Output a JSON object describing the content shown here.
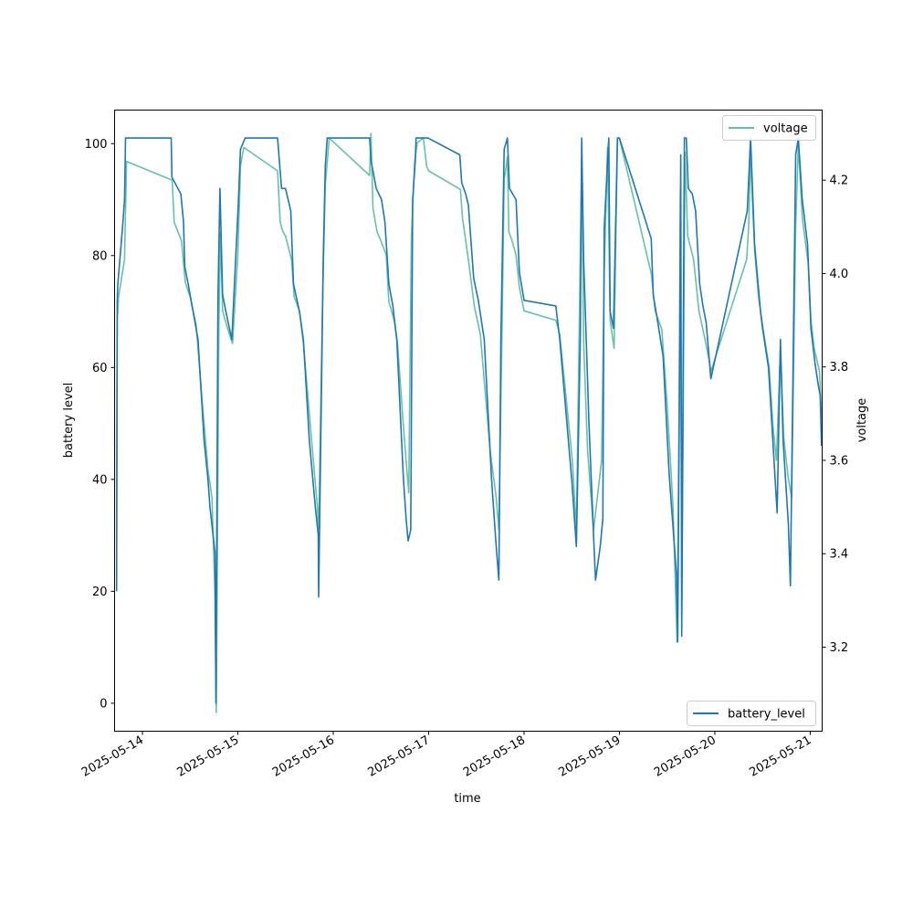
{
  "chart_data": {
    "type": "line",
    "xlabel": "time",
    "ylabel_left": "battery level",
    "ylabel_right": "voltage",
    "x_range": [
      "2025-05-13T17:00",
      "2025-05-21T03:00"
    ],
    "x_ticks": [
      "2025-05-14",
      "2025-05-15",
      "2025-05-16",
      "2025-05-17",
      "2025-05-18",
      "2025-05-19",
      "2025-05-20",
      "2025-05-21"
    ],
    "y_left_range": [
      -5,
      106
    ],
    "y_left_ticks": [
      0,
      20,
      40,
      60,
      80,
      100
    ],
    "y_right_range": [
      3.02,
      4.35
    ],
    "y_right_ticks": [
      "3.2",
      "3.4",
      "3.6",
      "3.8",
      "4.0",
      "4.2"
    ],
    "grid": false,
    "colors": {
      "battery_level": "#1f77b4",
      "voltage": "#66c2a5"
    },
    "series": [
      {
        "name": "battery_level",
        "axis": "left",
        "legend_position": "bottom-right",
        "points": [
          [
            "2025-05-13T17:30",
            20
          ],
          [
            "2025-05-13T17:40",
            72
          ],
          [
            "2025-05-13T17:50",
            75
          ],
          [
            "2025-05-13T19:00",
            85
          ],
          [
            "2025-05-13T19:30",
            90
          ],
          [
            "2025-05-13T19:45",
            101
          ],
          [
            "2025-05-14T07:15",
            101
          ],
          [
            "2025-05-14T07:25",
            94
          ],
          [
            "2025-05-14T09:40",
            91
          ],
          [
            "2025-05-14T10:20",
            86
          ],
          [
            "2025-05-14T10:40",
            78
          ],
          [
            "2025-05-14T11:30",
            75
          ],
          [
            "2025-05-14T13:00",
            69
          ],
          [
            "2025-05-14T14:00",
            65
          ],
          [
            "2025-05-14T15:30",
            47
          ],
          [
            "2025-05-14T16:30",
            40
          ],
          [
            "2025-05-14T17:00",
            35
          ],
          [
            "2025-05-14T18:15",
            27
          ],
          [
            "2025-05-14T18:30",
            0
          ],
          [
            "2025-05-14T19:00",
            72
          ],
          [
            "2025-05-14T19:30",
            92
          ],
          [
            "2025-05-14T20:10",
            73
          ],
          [
            "2025-05-14T21:00",
            70
          ],
          [
            "2025-05-14T22:30",
            65
          ],
          [
            "2025-05-15T00:10",
            90
          ],
          [
            "2025-05-15T00:40",
            99
          ],
          [
            "2025-05-15T01:50",
            101
          ],
          [
            "2025-05-15T10:00",
            101
          ],
          [
            "2025-05-15T11:00",
            92
          ],
          [
            "2025-05-15T12:00",
            92
          ],
          [
            "2025-05-15T13:20",
            88
          ],
          [
            "2025-05-15T14:00",
            75
          ],
          [
            "2025-05-15T15:30",
            70
          ],
          [
            "2025-05-15T16:30",
            65
          ],
          [
            "2025-05-15T18:00",
            47
          ],
          [
            "2025-05-15T19:30",
            35
          ],
          [
            "2025-05-15T20:15",
            30
          ],
          [
            "2025-05-15T20:20",
            19
          ],
          [
            "2025-05-15T21:30",
            80
          ],
          [
            "2025-05-15T22:00",
            96
          ],
          [
            "2025-05-15T22:30",
            101
          ],
          [
            "2025-05-16T09:10",
            101
          ],
          [
            "2025-05-16T09:30",
            97
          ],
          [
            "2025-05-16T10:50",
            92
          ],
          [
            "2025-05-16T12:10",
            90
          ],
          [
            "2025-05-16T13:00",
            86
          ],
          [
            "2025-05-16T14:00",
            75
          ],
          [
            "2025-05-16T15:00",
            71
          ],
          [
            "2025-05-16T16:00",
            65
          ],
          [
            "2025-05-16T17:40",
            40
          ],
          [
            "2025-05-16T18:20",
            33
          ],
          [
            "2025-05-16T18:50",
            29
          ],
          [
            "2025-05-16T19:30",
            31
          ],
          [
            "2025-05-16T20:00",
            90
          ],
          [
            "2025-05-16T20:40",
            97
          ],
          [
            "2025-05-16T20:50",
            101
          ],
          [
            "2025-05-16T23:50",
            101
          ],
          [
            "2025-05-17T07:50",
            98
          ],
          [
            "2025-05-17T08:20",
            93
          ],
          [
            "2025-05-17T09:20",
            91
          ],
          [
            "2025-05-17T10:00",
            89
          ],
          [
            "2025-05-17T11:20",
            76
          ],
          [
            "2025-05-17T12:30",
            72
          ],
          [
            "2025-05-17T14:00",
            65
          ],
          [
            "2025-05-17T15:50",
            40
          ],
          [
            "2025-05-17T17:00",
            28
          ],
          [
            "2025-05-17T17:40",
            22
          ],
          [
            "2025-05-17T18:10",
            65
          ],
          [
            "2025-05-17T19:00",
            99
          ],
          [
            "2025-05-17T19:50",
            101
          ],
          [
            "2025-05-17T20:20",
            92
          ],
          [
            "2025-05-17T22:00",
            90
          ],
          [
            "2025-05-17T22:50",
            77
          ],
          [
            "2025-05-18T00:00",
            72
          ],
          [
            "2025-05-18T08:00",
            71
          ],
          [
            "2025-05-18T09:00",
            65
          ],
          [
            "2025-05-18T12:00",
            40
          ],
          [
            "2025-05-18T13:10",
            28
          ],
          [
            "2025-05-18T14:10",
            65
          ],
          [
            "2025-05-18T14:30",
            101
          ],
          [
            "2025-05-18T15:00",
            79
          ],
          [
            "2025-05-18T16:20",
            50
          ],
          [
            "2025-05-18T17:40",
            27
          ],
          [
            "2025-05-18T18:00",
            22
          ],
          [
            "2025-05-18T19:10",
            28
          ],
          [
            "2025-05-18T19:50",
            33
          ],
          [
            "2025-05-18T20:10",
            85
          ],
          [
            "2025-05-18T21:20",
            101
          ],
          [
            "2025-05-18T21:40",
            70
          ],
          [
            "2025-05-18T22:30",
            67
          ],
          [
            "2025-05-18T23:30",
            101
          ],
          [
            "2025-05-19T00:00",
            101
          ],
          [
            "2025-05-19T08:00",
            83
          ],
          [
            "2025-05-19T08:30",
            73
          ],
          [
            "2025-05-19T09:40",
            68
          ],
          [
            "2025-05-19T11:00",
            62
          ],
          [
            "2025-05-19T12:30",
            41
          ],
          [
            "2025-05-19T14:20",
            23
          ],
          [
            "2025-05-19T14:40",
            11
          ],
          [
            "2025-05-19T15:10",
            64
          ],
          [
            "2025-05-19T15:25",
            98
          ],
          [
            "2025-05-19T15:40",
            12
          ],
          [
            "2025-05-19T16:20",
            101
          ],
          [
            "2025-05-19T16:50",
            101
          ],
          [
            "2025-05-19T17:20",
            92
          ],
          [
            "2025-05-19T18:20",
            91
          ],
          [
            "2025-05-19T19:10",
            88
          ],
          [
            "2025-05-19T20:10",
            75
          ],
          [
            "2025-05-19T21:00",
            71
          ],
          [
            "2025-05-19T21:50",
            68
          ],
          [
            "2025-05-19T23:00",
            58
          ],
          [
            "2025-05-20T08:10",
            88
          ],
          [
            "2025-05-20T09:00",
            101
          ],
          [
            "2025-05-20T10:00",
            82
          ],
          [
            "2025-05-20T11:30",
            70
          ],
          [
            "2025-05-20T12:00",
            67
          ],
          [
            "2025-05-20T13:30",
            60
          ],
          [
            "2025-05-20T14:30",
            48
          ],
          [
            "2025-05-20T15:40",
            34
          ],
          [
            "2025-05-20T16:30",
            65
          ],
          [
            "2025-05-20T17:10",
            47
          ],
          [
            "2025-05-20T18:30",
            32
          ],
          [
            "2025-05-20T19:00",
            21
          ],
          [
            "2025-05-20T20:20",
            98
          ],
          [
            "2025-05-20T21:00",
            101
          ],
          [
            "2025-05-20T22:00",
            90
          ],
          [
            "2025-05-20T23:20",
            82
          ],
          [
            "2025-05-21T00:10",
            67
          ],
          [
            "2025-05-21T01:10",
            61
          ],
          [
            "2025-05-21T02:00",
            57
          ],
          [
            "2025-05-21T02:30",
            55
          ],
          [
            "2025-05-21T02:50",
            46
          ]
        ]
      },
      {
        "name": "voltage",
        "axis": "right",
        "legend_position": "top-right",
        "points": [
          [
            "2025-05-13T17:30",
            3.43
          ],
          [
            "2025-05-13T17:40",
            3.9
          ],
          [
            "2025-05-13T18:00",
            3.95
          ],
          [
            "2025-05-13T19:30",
            4.03
          ],
          [
            "2025-05-13T20:00",
            4.24
          ],
          [
            "2025-05-14T07:30",
            4.2
          ],
          [
            "2025-05-14T08:00",
            4.11
          ],
          [
            "2025-05-14T09:50",
            4.07
          ],
          [
            "2025-05-14T10:50",
            3.98
          ],
          [
            "2025-05-14T12:00",
            3.95
          ],
          [
            "2025-05-14T13:30",
            3.89
          ],
          [
            "2025-05-14T15:00",
            3.73
          ],
          [
            "2025-05-14T16:30",
            3.58
          ],
          [
            "2025-05-14T17:30",
            3.52
          ],
          [
            "2025-05-14T18:15",
            3.32
          ],
          [
            "2025-05-14T18:35",
            3.06
          ],
          [
            "2025-05-14T19:15",
            3.9
          ],
          [
            "2025-05-14T19:40",
            4.09
          ],
          [
            "2025-05-14T20:10",
            3.92
          ],
          [
            "2025-05-14T21:30",
            3.88
          ],
          [
            "2025-05-14T22:40",
            3.85
          ],
          [
            "2025-05-15T00:00",
            4.04
          ],
          [
            "2025-05-15T00:40",
            4.23
          ],
          [
            "2025-05-15T01:30",
            4.27
          ],
          [
            "2025-05-15T10:00",
            4.22
          ],
          [
            "2025-05-15T10:40",
            4.11
          ],
          [
            "2025-05-15T11:20",
            4.09
          ],
          [
            "2025-05-15T12:00",
            4.08
          ],
          [
            "2025-05-15T13:30",
            4.03
          ],
          [
            "2025-05-15T14:10",
            3.95
          ],
          [
            "2025-05-15T15:30",
            3.92
          ],
          [
            "2025-05-15T16:30",
            3.85
          ],
          [
            "2025-05-15T18:30",
            3.65
          ],
          [
            "2025-05-15T20:00",
            3.5
          ],
          [
            "2025-05-15T20:20",
            3.45
          ],
          [
            "2025-05-15T21:20",
            3.95
          ],
          [
            "2025-05-15T22:00",
            4.19
          ],
          [
            "2025-05-15T23:00",
            4.29
          ],
          [
            "2025-05-16T09:10",
            4.21
          ],
          [
            "2025-05-16T09:30",
            4.3
          ],
          [
            "2025-05-16T10:00",
            4.14
          ],
          [
            "2025-05-16T11:00",
            4.09
          ],
          [
            "2025-05-16T12:00",
            4.07
          ],
          [
            "2025-05-16T13:20",
            4.04
          ],
          [
            "2025-05-16T14:00",
            3.94
          ],
          [
            "2025-05-16T15:20",
            3.9
          ],
          [
            "2025-05-16T16:10",
            3.85
          ],
          [
            "2025-05-16T17:30",
            3.69
          ],
          [
            "2025-05-16T18:20",
            3.6
          ],
          [
            "2025-05-16T19:00",
            3.53
          ],
          [
            "2025-05-16T19:40",
            4.08
          ],
          [
            "2025-05-16T20:30",
            4.24
          ],
          [
            "2025-05-16T21:10",
            4.28
          ],
          [
            "2025-05-16T22:40",
            4.29
          ],
          [
            "2025-05-16T23:30",
            4.23
          ],
          [
            "2025-05-17T00:00",
            4.22
          ],
          [
            "2025-05-17T08:00",
            4.18
          ],
          [
            "2025-05-17T08:30",
            4.12
          ],
          [
            "2025-05-17T10:00",
            4.03
          ],
          [
            "2025-05-17T11:30",
            3.93
          ],
          [
            "2025-05-17T13:00",
            3.87
          ],
          [
            "2025-05-17T15:30",
            3.62
          ],
          [
            "2025-05-17T17:00",
            3.52
          ],
          [
            "2025-05-17T17:40",
            3.45
          ],
          [
            "2025-05-17T18:30",
            3.9
          ],
          [
            "2025-05-17T19:00",
            4.2
          ],
          [
            "2025-05-17T19:50",
            4.25
          ],
          [
            "2025-05-17T20:10",
            4.09
          ],
          [
            "2025-05-17T21:00",
            4.07
          ],
          [
            "2025-05-17T22:00",
            4.04
          ],
          [
            "2025-05-17T22:50",
            3.97
          ],
          [
            "2025-05-18T00:00",
            3.92
          ],
          [
            "2025-05-18T08:00",
            3.9
          ],
          [
            "2025-05-18T09:00",
            3.87
          ],
          [
            "2025-05-18T12:10",
            3.6
          ],
          [
            "2025-05-18T13:10",
            3.45
          ],
          [
            "2025-05-18T14:30",
            4.25
          ],
          [
            "2025-05-18T15:00",
            3.85
          ],
          [
            "2025-05-18T16:00",
            3.62
          ],
          [
            "2025-05-18T17:30",
            3.45
          ],
          [
            "2025-05-18T19:30",
            3.6
          ],
          [
            "2025-05-18T20:10",
            4.0
          ],
          [
            "2025-05-18T21:00",
            4.27
          ],
          [
            "2025-05-18T21:40",
            3.9
          ],
          [
            "2025-05-18T22:40",
            3.84
          ],
          [
            "2025-05-18T23:30",
            4.29
          ],
          [
            "2025-05-19T00:00",
            4.29
          ],
          [
            "2025-05-19T08:00",
            4.0
          ],
          [
            "2025-05-19T09:00",
            3.92
          ],
          [
            "2025-05-19T10:40",
            3.88
          ],
          [
            "2025-05-19T12:00",
            3.72
          ],
          [
            "2025-05-19T13:30",
            3.5
          ],
          [
            "2025-05-19T14:30",
            3.21
          ],
          [
            "2025-05-19T15:00",
            3.7
          ],
          [
            "2025-05-19T15:20",
            4.18
          ],
          [
            "2025-05-19T15:40",
            3.27
          ],
          [
            "2025-05-19T16:30",
            4.26
          ],
          [
            "2025-05-19T17:10",
            4.08
          ],
          [
            "2025-05-19T18:40",
            4.03
          ],
          [
            "2025-05-19T20:00",
            3.92
          ],
          [
            "2025-05-19T21:30",
            3.86
          ],
          [
            "2025-05-19T22:40",
            3.81
          ],
          [
            "2025-05-19T23:00",
            3.79
          ],
          [
            "2025-05-20T08:00",
            4.03
          ],
          [
            "2025-05-20T08:30",
            4.1
          ],
          [
            "2025-05-20T09:00",
            4.25
          ],
          [
            "2025-05-20T10:00",
            4.05
          ],
          [
            "2025-05-20T11:00",
            3.95
          ],
          [
            "2025-05-20T12:00",
            3.89
          ],
          [
            "2025-05-20T13:40",
            3.8
          ],
          [
            "2025-05-20T14:40",
            3.67
          ],
          [
            "2025-05-20T15:30",
            3.6
          ],
          [
            "2025-05-20T16:30",
            3.84
          ],
          [
            "2025-05-20T17:20",
            3.65
          ],
          [
            "2025-05-20T18:30",
            3.56
          ],
          [
            "2025-05-20T19:20",
            3.52
          ],
          [
            "2025-05-20T20:20",
            4.1
          ],
          [
            "2025-05-20T21:00",
            4.28
          ],
          [
            "2025-05-20T22:00",
            4.12
          ],
          [
            "2025-05-20T23:30",
            4.02
          ],
          [
            "2025-05-21T00:10",
            3.9
          ],
          [
            "2025-05-21T01:00",
            3.84
          ],
          [
            "2025-05-21T02:20",
            3.79
          ],
          [
            "2025-05-21T02:50",
            3.69
          ]
        ]
      }
    ]
  }
}
